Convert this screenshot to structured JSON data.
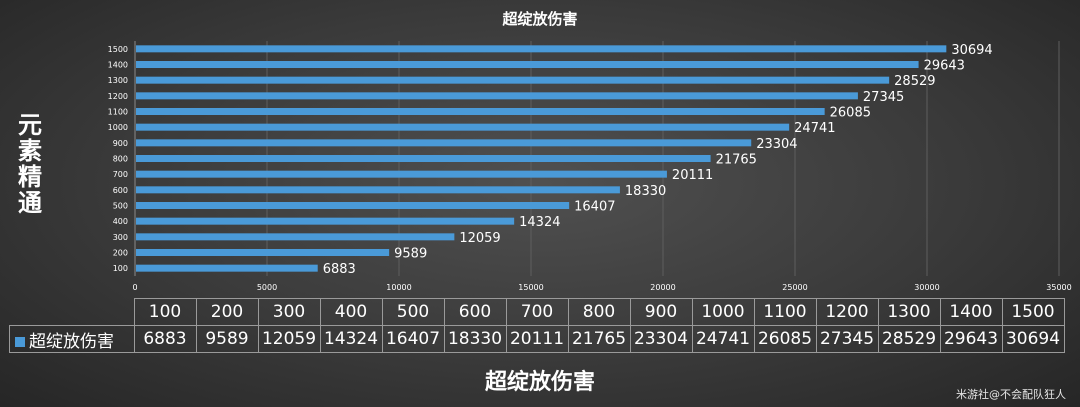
{
  "chart_data": {
    "type": "bar",
    "orientation": "horizontal",
    "title": "超绽放伤害",
    "ylabel": "元素精通",
    "xlabel": "超绽放伤害",
    "categories": [
      "100",
      "200",
      "300",
      "400",
      "500",
      "600",
      "700",
      "800",
      "900",
      "1000",
      "1100",
      "1200",
      "1300",
      "1400",
      "1500"
    ],
    "series": [
      {
        "name": "超绽放伤害",
        "values": [
          6883,
          9589,
          12059,
          14324,
          16407,
          18330,
          20111,
          21765,
          23304,
          24741,
          26085,
          27345,
          28529,
          29643,
          30694
        ]
      }
    ],
    "xlim": [
      0,
      35000
    ],
    "x_ticks": [
      "0",
      "5000",
      "10000",
      "15000",
      "20000",
      "25000",
      "30000",
      "35000"
    ],
    "grid": true,
    "bar_color": "#4a9ad8",
    "data_table": true
  },
  "watermark": "米游社@不会配队狂人"
}
